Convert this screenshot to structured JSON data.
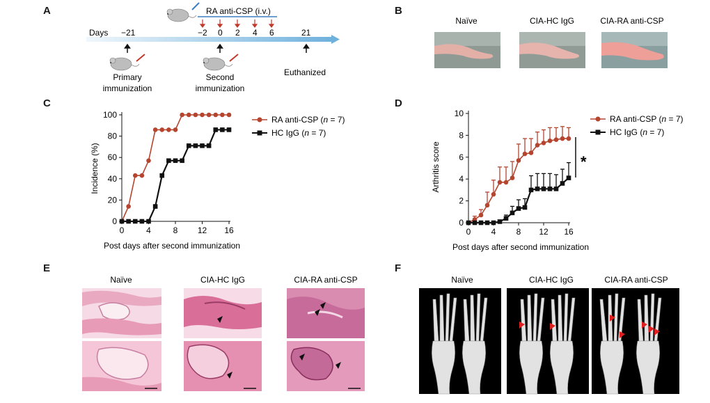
{
  "panels": {
    "A": {
      "letter": "A",
      "treatment_label": "RA anti-CSP (i.v.)",
      "days_label": "Days",
      "ticks": [
        "−21",
        "−2",
        "0",
        "2",
        "4",
        "6",
        "21"
      ],
      "events": {
        "primary": "Primary",
        "primary2": "immunization",
        "second": "Second",
        "second2": "immunization",
        "euthanized": "Euthanized"
      },
      "colors": {
        "timeline": "#9ecae1",
        "arrow_red": "#c0392b",
        "treatment_bar": "#3b7fc4"
      }
    },
    "B": {
      "letter": "B",
      "labels": [
        "Naïve",
        "CIA-HC IgG",
        "CIA-RA anti-CSP"
      ]
    },
    "C": {
      "letter": "C",
      "legend": [
        {
          "name": "RA anti-CSP",
          "italic_n": "n",
          "suffix": " = 7)",
          "prefix": " ("
        },
        {
          "name": "HC IgG",
          "italic_n": "n",
          "suffix": " = 7)",
          "prefix": " ("
        }
      ]
    },
    "D": {
      "letter": "D",
      "legend": [
        {
          "name": "RA anti-CSP",
          "italic_n": "n",
          "suffix": " = 7)",
          "prefix": " ("
        },
        {
          "name": "HC IgG",
          "italic_n": "n",
          "suffix": " = 7)",
          "prefix": " ("
        }
      ],
      "significance": "*"
    },
    "E": {
      "letter": "E",
      "labels": [
        "Naïve",
        "CIA-HC IgG",
        "CIA-RA anti-CSP"
      ]
    },
    "F": {
      "letter": "F",
      "labels": [
        "Naïve",
        "CIA-HC IgG",
        "CIA-RA anti-CSP"
      ]
    }
  },
  "chart_data": [
    {
      "id": "C",
      "type": "line",
      "xlabel": "Post days after second immunization",
      "ylabel": "Incidence (%)",
      "xlim": [
        0,
        16
      ],
      "ylim": [
        0,
        100
      ],
      "xticks": [
        0,
        4,
        8,
        12,
        16
      ],
      "yticks": [
        0,
        20,
        40,
        60,
        80,
        100
      ],
      "series": [
        {
          "name": "RA anti-CSP (n = 7)",
          "color": "#b5452f",
          "marker": "circle",
          "x": [
            0,
            1,
            2,
            3,
            4,
            5,
            6,
            7,
            8,
            9,
            10,
            11,
            12,
            13,
            14,
            15,
            16
          ],
          "y": [
            0,
            14,
            43,
            43,
            57,
            86,
            86,
            86,
            86,
            100,
            100,
            100,
            100,
            100,
            100,
            100,
            100
          ]
        },
        {
          "name": "HC IgG (n = 7)",
          "color": "#111111",
          "marker": "square",
          "x": [
            0,
            1,
            2,
            3,
            4,
            5,
            6,
            7,
            8,
            9,
            10,
            11,
            12,
            13,
            14,
            15,
            16
          ],
          "y": [
            0,
            0,
            0,
            0,
            0,
            14,
            43,
            57,
            57,
            57,
            71,
            71,
            71,
            71,
            86,
            86,
            86
          ]
        }
      ]
    },
    {
      "id": "D",
      "type": "line",
      "xlabel": "Post days after second immunization",
      "ylabel": "Arthritis score",
      "xlim": [
        0,
        16
      ],
      "ylim": [
        0,
        10
      ],
      "xticks": [
        0,
        4,
        8,
        12,
        16
      ],
      "yticks": [
        0,
        2,
        4,
        6,
        8,
        10
      ],
      "series": [
        {
          "name": "RA anti-CSP (n = 7)",
          "color": "#b5452f",
          "marker": "circle",
          "x": [
            0,
            1,
            2,
            3,
            4,
            5,
            6,
            7,
            8,
            9,
            10,
            11,
            12,
            13,
            14,
            15,
            16
          ],
          "y": [
            0,
            0.3,
            0.7,
            1.6,
            2.6,
            3.7,
            3.7,
            4.1,
            5.7,
            6.3,
            6.4,
            7.1,
            7.3,
            7.5,
            7.6,
            7.7,
            7.7
          ],
          "err": [
            0,
            0.3,
            0.5,
            1.2,
            1.3,
            1.4,
            1.4,
            1.5,
            1.5,
            1.4,
            1.3,
            1.2,
            1.2,
            1.2,
            1.1,
            1.1,
            1.0
          ]
        },
        {
          "name": "HC IgG (n = 7)",
          "color": "#111111",
          "marker": "square",
          "x": [
            0,
            1,
            2,
            3,
            4,
            5,
            6,
            7,
            8,
            9,
            10,
            11,
            12,
            13,
            14,
            15,
            16
          ],
          "y": [
            0,
            0,
            0,
            0,
            0,
            0.1,
            0.4,
            0.9,
            1.3,
            1.4,
            3.0,
            3.1,
            3.1,
            3.1,
            3.1,
            3.6,
            4.1
          ],
          "err": [
            0,
            0,
            0,
            0,
            0,
            0.1,
            0.3,
            0.6,
            0.8,
            0.8,
            1.3,
            1.4,
            1.4,
            1.4,
            1.3,
            1.3,
            1.4
          ]
        }
      ]
    }
  ]
}
